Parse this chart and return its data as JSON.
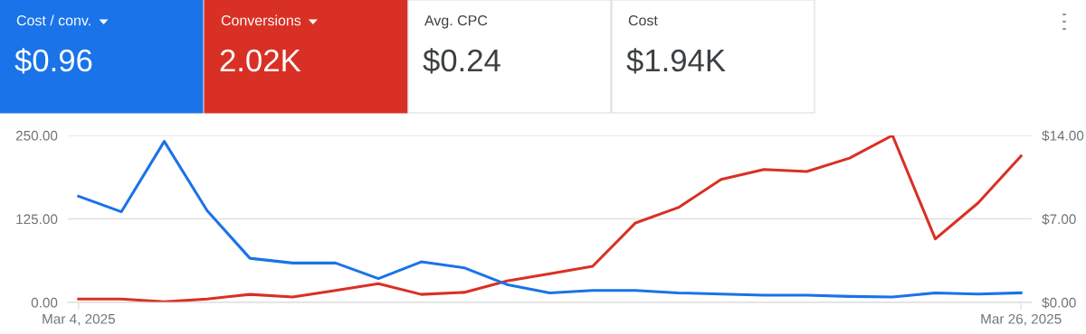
{
  "chart_data": [
    {
      "type": "other",
      "categories": [
        "Cost / conv.",
        "Conversions",
        "Avg. CPC",
        "Cost"
      ],
      "value_labels": [
        "$0.96",
        "2.02K",
        "$0.24",
        "$1.94K"
      ],
      "colors": [
        "#1a73e8",
        "#d93025",
        "#ffffff",
        "#ffffff"
      ]
    },
    {
      "type": "line",
      "x": [
        "2025-03-04",
        "2025-03-05",
        "2025-03-06",
        "2025-03-07",
        "2025-03-08",
        "2025-03-09",
        "2025-03-10",
        "2025-03-11",
        "2025-03-12",
        "2025-03-13",
        "2025-03-14",
        "2025-03-15",
        "2025-03-16",
        "2025-03-17",
        "2025-03-18",
        "2025-03-19",
        "2025-03-20",
        "2025-03-21",
        "2025-03-22",
        "2025-03-23",
        "2025-03-24",
        "2025-03-25",
        "2025-03-26"
      ],
      "series": [
        {
          "color": "#d93025",
          "values": [
            5,
            5,
            1,
            5,
            12,
            8,
            18,
            28,
            12,
            15,
            32,
            43,
            54,
            119,
            142,
            184,
            199,
            196,
            216,
            250,
            95,
            149,
            219
          ]
        },
        {
          "color": "#1a73e8",
          "axis": "y2",
          "values": [
            8.9,
            7.6,
            13.5,
            7.7,
            3.7,
            3.3,
            3.3,
            2.0,
            3.4,
            2.9,
            1.5,
            0.8,
            1.0,
            1.0,
            0.8,
            0.7,
            0.6,
            0.6,
            0.5,
            0.45,
            0.8,
            0.7,
            0.8
          ]
        }
      ],
      "xlim": [
        "2025-03-03T18:00",
        "2025-03-26T06:00"
      ],
      "xticks": [
        {
          "value": "2025-03-04",
          "label": "Mar 4, 2025"
        },
        {
          "value": "2025-03-26",
          "label": "Mar 26, 2025"
        }
      ],
      "ylim": [
        0,
        250
      ],
      "yticks": [
        {
          "value": 0,
          "label": "0.00"
        },
        {
          "value": 125,
          "label": "125.00"
        },
        {
          "value": 250,
          "label": "250.00"
        }
      ],
      "y2lim": [
        0,
        14
      ],
      "y2ticks": [
        {
          "value": 0,
          "label": "$0.00"
        },
        {
          "value": 7,
          "label": "$7.00"
        },
        {
          "value": 14,
          "label": "$14.00"
        }
      ],
      "grid": "y",
      "marker": "none",
      "line_style": "solid"
    }
  ]
}
